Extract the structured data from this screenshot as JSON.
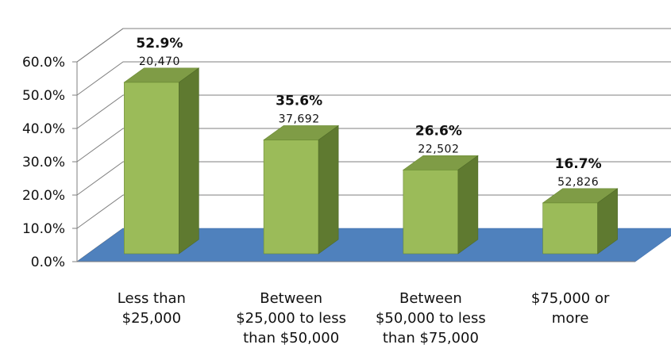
{
  "chart_data": {
    "type": "bar",
    "categories": [
      [
        "Less than",
        "$25,000"
      ],
      [
        "Between",
        "$25,000 to less",
        "than $50,000"
      ],
      [
        "Between",
        "$50,000 to less",
        "than $75,000"
      ],
      [
        "$75,000 or",
        "more"
      ]
    ],
    "values": [
      52.9,
      35.6,
      26.6,
      16.7
    ],
    "data_labels": [
      "52.9%",
      "35.6%",
      "26.6%",
      "16.7%"
    ],
    "counts": [
      "20,470",
      "37,692",
      "22,502",
      "52,826"
    ],
    "y_ticks": [
      "0.0%",
      "10.0%",
      "20.0%",
      "30.0%",
      "40.0%",
      "50.0%",
      "60.0%"
    ],
    "ylim": [
      0,
      60
    ],
    "grid": true,
    "legend": "none",
    "three_d": true,
    "colors": {
      "bar_front": "#9bbb59",
      "bar_top": "#7f9c46",
      "bar_side": "#5f7a30",
      "floor": "#4f81bd",
      "floor_back": "#a8a8b8",
      "grid": "#7f7f7f"
    }
  }
}
